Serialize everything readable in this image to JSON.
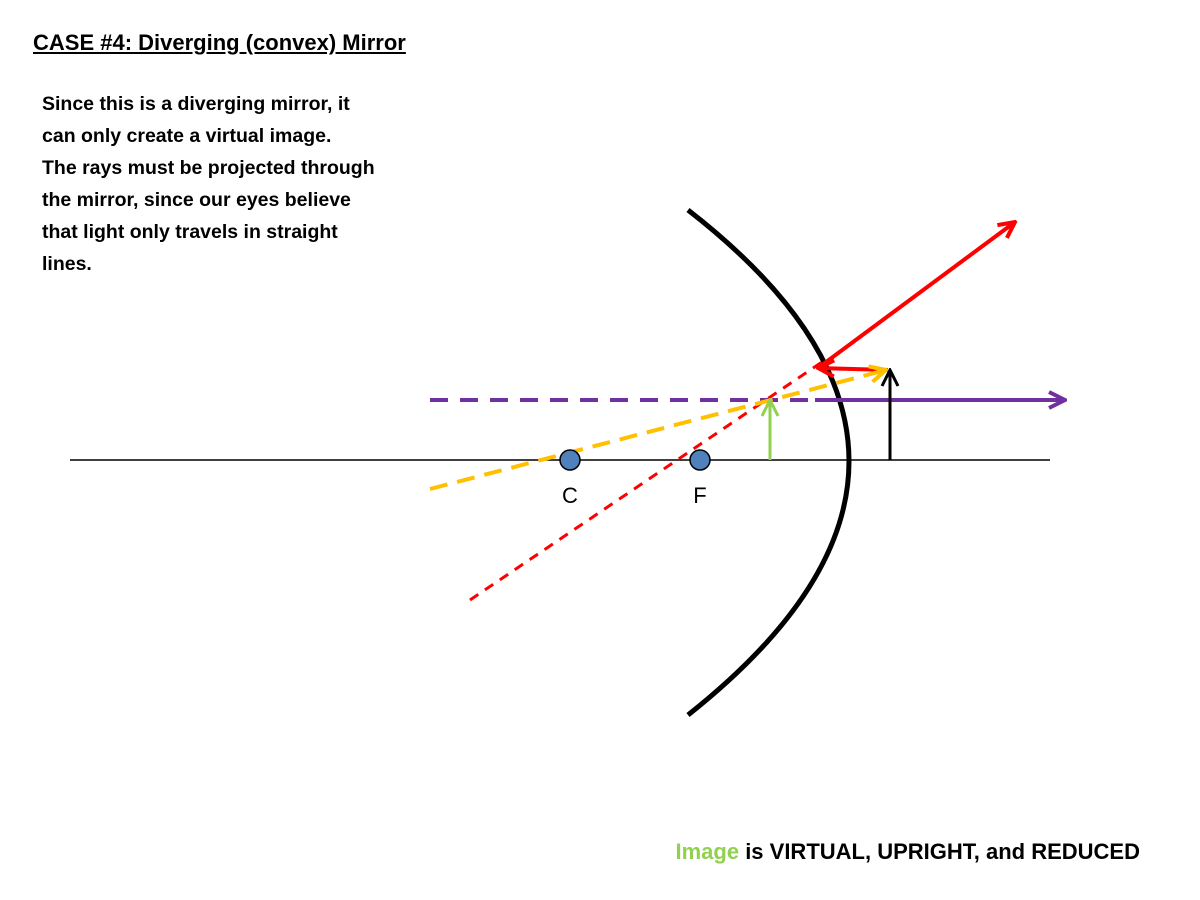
{
  "header": {
    "title": "CASE #4: Diverging (convex) Mirror"
  },
  "description": {
    "lines": [
      "Since this is a diverging mirror, it",
      "can only create a virtual image.",
      "The rays must be projected through",
      "the mirror, since our eyes believe",
      "that light only travels in straight",
      "lines."
    ]
  },
  "labels": {
    "center": "C",
    "focus": "F"
  },
  "conclusion": {
    "highlight": "Image",
    "text": "is VIRTUAL, UPRIGHT, and REDUCED"
  }
}
